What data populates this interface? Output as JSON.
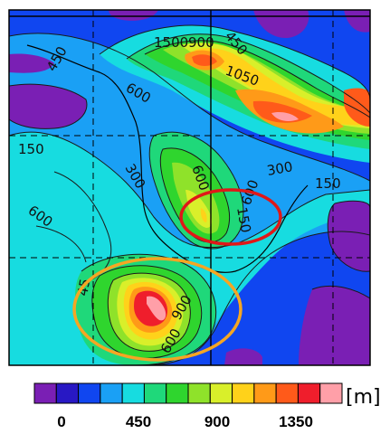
{
  "map": {
    "contour_labels": [
      "1500",
      "900",
      "1050",
      "450",
      "600",
      "300",
      "450",
      "600",
      "600",
      "150",
      "300",
      "150",
      "600",
      "45",
      "900",
      "600",
      "150"
    ],
    "colors": {
      "c0": "#7a1fb4",
      "c1": "#2818c4",
      "c2": "#1046f0",
      "c3": "#1aa0f5",
      "c4": "#17dce0",
      "c5": "#1fd87a",
      "c6": "#2fd52e",
      "c7": "#8fe22a",
      "c8": "#d9ef2a",
      "c9": "#ffd21a",
      "c10": "#ff9a18",
      "c11": "#ff5a1a",
      "c12": "#ef1e2c",
      "c13": "#ff9fa8"
    },
    "annotations": [
      {
        "shape": "ellipse",
        "color": "#e01818"
      },
      {
        "shape": "ellipse",
        "color": "#f5a623"
      }
    ]
  },
  "colorbar": {
    "ticks": [
      "0",
      "450",
      "900",
      "1350"
    ],
    "unit": "[m]",
    "colors": [
      "#7a1fb4",
      "#2818c4",
      "#1046f0",
      "#1aa0f5",
      "#17dce0",
      "#1fd87a",
      "#2fd52e",
      "#8fe22a",
      "#d9ef2a",
      "#ffd21a",
      "#ff9a18",
      "#ff5a1a",
      "#ef1e2c",
      "#ff9fa8"
    ]
  }
}
